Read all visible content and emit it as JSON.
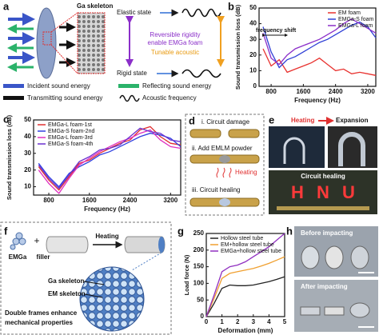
{
  "panels": {
    "a": {
      "label": "a",
      "ga_skeleton": "Ga skeleton",
      "elastic_state": "Elastic state",
      "rigid_state": "Rigid state",
      "center_text": [
        "Reversible rigidity",
        "enable EMGa foam"
      ],
      "tunable": "Tunable acoustic",
      "legend": [
        "Incident sound energy",
        "Reflecting sound energy",
        "Transmitting sound energy",
        "Acoustic frequency"
      ]
    },
    "d": {
      "label": "d",
      "steps": [
        "i. Circuit damage",
        "ii. Add EMLM powder",
        "iii. Circuit healing"
      ],
      "heating": "Heating"
    },
    "e": {
      "label": "e",
      "heating": "Heating",
      "expansion": "Expansion",
      "circuit_healing": "Circuit healing",
      "letters": [
        "H",
        "N",
        "U"
      ]
    },
    "f": {
      "label": "f",
      "emga": "EMGa",
      "filler": "filler",
      "plus": "+",
      "heating": "Heating",
      "ga_skeleton": "Ga skeleton",
      "em_skeleton": "EM skeleton",
      "caption": [
        "Double frames enhance",
        "mechanical properties"
      ]
    },
    "h": {
      "label": "h",
      "before": "Before impacting",
      "after": "After impacting"
    }
  },
  "chart_data": [
    {
      "type": "line",
      "panel_label": "b",
      "xlabel": "Frequency (Hz)",
      "ylabel": "Sound transmission loss (dB)",
      "annotation": "frequency shift",
      "legend": "upper right",
      "x": [
        600,
        800,
        1000,
        1200,
        1400,
        1600,
        1800,
        2000,
        2200,
        2400,
        2600,
        2800,
        3000,
        3200,
        3400
      ],
      "xlim": [
        500,
        3400
      ],
      "xticks": [
        800,
        1600,
        2400,
        3200
      ],
      "ylim": [
        0,
        50
      ],
      "yticks": [
        0,
        10,
        20,
        30,
        40,
        50
      ],
      "series": [
        {
          "name": "EM foam",
          "color": "#e8322f",
          "values": [
            24,
            13,
            17,
            9,
            11,
            13,
            15,
            18,
            14,
            10,
            11,
            8,
            9,
            8,
            7
          ]
        },
        {
          "name": "EMGa-S foam",
          "color": "#2f3fd6",
          "values": [
            38,
            22,
            12,
            17,
            19,
            22,
            25,
            28,
            30,
            33,
            36,
            39,
            41,
            38,
            31
          ]
        },
        {
          "name": "EMGa-L foam",
          "color": "#8b2fc9",
          "values": [
            34,
            18,
            14,
            20,
            24,
            26,
            28,
            30,
            33,
            36,
            40,
            43,
            40,
            37,
            34
          ]
        }
      ]
    },
    {
      "type": "line",
      "panel_label": "c",
      "xlabel": "Frequency (Hz)",
      "ylabel": "Sound transmission loss (dB)",
      "legend": "upper left",
      "x": [
        600,
        800,
        1000,
        1200,
        1400,
        1600,
        1800,
        2000,
        2200,
        2400,
        2600,
        2800,
        3000,
        3200,
        3400
      ],
      "xlim": [
        500,
        3400
      ],
      "xticks": [
        800,
        1600,
        2400,
        3200
      ],
      "ylim": [
        5,
        50
      ],
      "yticks": [
        10,
        20,
        30,
        40,
        50
      ],
      "series": [
        {
          "name": "EMGa-L foam-1st",
          "color": "#e03030",
          "values": [
            22,
            14,
            8,
            16,
            24,
            26,
            30,
            33,
            36,
            38,
            44,
            46,
            40,
            36,
            35
          ]
        },
        {
          "name": "EMGa-S foam-2nd",
          "color": "#3040e0",
          "values": [
            24,
            16,
            10,
            18,
            22,
            25,
            29,
            31,
            34,
            37,
            40,
            42,
            41,
            39,
            34
          ]
        },
        {
          "name": "EMGa-L foam-3rd",
          "color": "#e030c0",
          "values": [
            20,
            12,
            6,
            15,
            23,
            27,
            31,
            34,
            37,
            39,
            42,
            44,
            38,
            34,
            33
          ]
        },
        {
          "name": "EMGa-S foam-4th",
          "color": "#6a30d0",
          "values": [
            23,
            15,
            9,
            17,
            25,
            28,
            32,
            33,
            35,
            40,
            45,
            43,
            42,
            38,
            37
          ]
        }
      ]
    },
    {
      "type": "line",
      "panel_label": "g",
      "xlabel": "Deformation (mm)",
      "ylabel": "Load force (N)",
      "legend": "upper left",
      "x": [
        0,
        0.5,
        1,
        1.5,
        2,
        2.5,
        3,
        3.5,
        4,
        4.5,
        5
      ],
      "xlim": [
        0,
        5
      ],
      "xticks": [
        0,
        1,
        2,
        3,
        4,
        5
      ],
      "ylim": [
        0,
        250
      ],
      "yticks": [
        0,
        50,
        100,
        150,
        200,
        250
      ],
      "series": [
        {
          "name": "Hollow steel tube",
          "color": "#222222",
          "values": [
            0,
            40,
            85,
            95,
            93,
            93,
            95,
            100,
            105,
            112,
            120
          ]
        },
        {
          "name": "EM+hollow steel tube",
          "color": "#f0a030",
          "values": [
            0,
            55,
            115,
            130,
            135,
            140,
            145,
            152,
            160,
            170,
            180
          ]
        },
        {
          "name": "EMGa+hollow steel tube",
          "color": "#9030c0",
          "values": [
            0,
            65,
            135,
            150,
            155,
            165,
            180,
            195,
            210,
            230,
            250
          ]
        }
      ]
    }
  ]
}
